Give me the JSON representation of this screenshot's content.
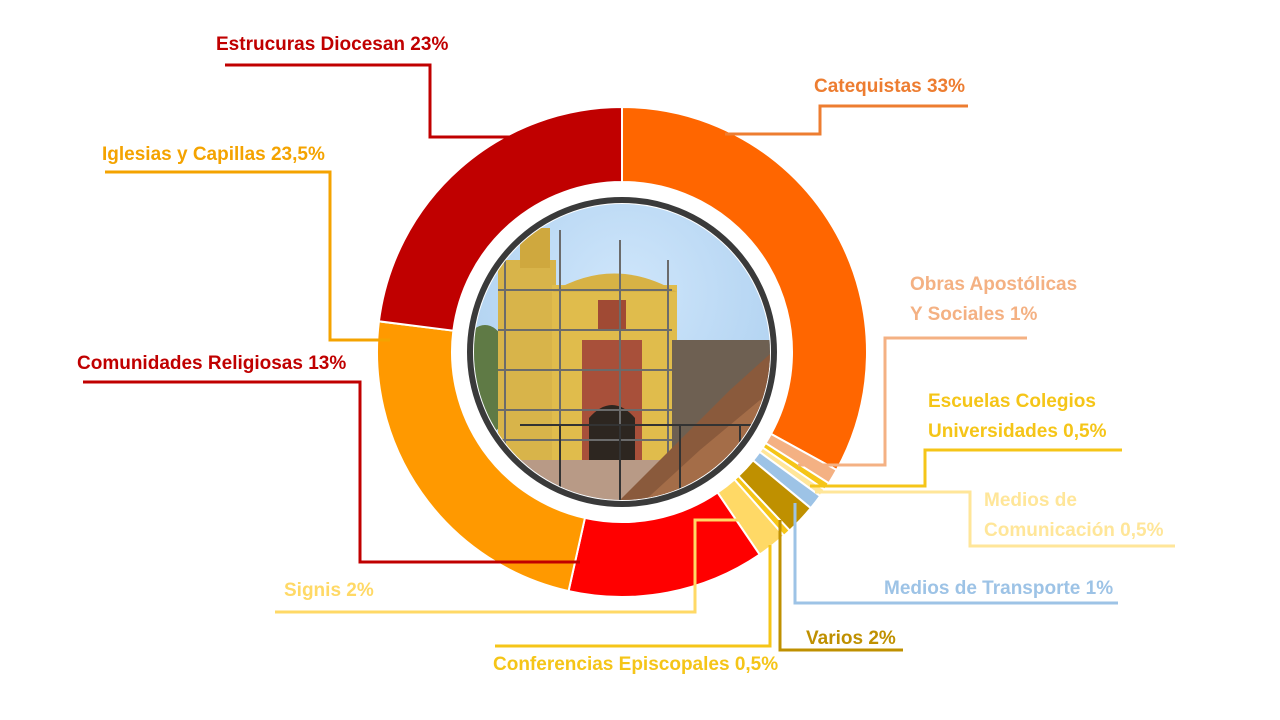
{
  "chart_data": {
    "type": "pie",
    "title": "",
    "series": [
      {
        "name": "Catequistas",
        "label": "Catequistas 33%",
        "value": 33,
        "color": "#ff6600"
      },
      {
        "name": "Obras Apostólicas Y Sociales",
        "label_lines": [
          "Obras Apostólicas",
          "Y Sociales 1%"
        ],
        "value": 1,
        "color": "#f4b183"
      },
      {
        "name": "Escuelas Colegios Universidades",
        "label_lines": [
          "Escuelas Colegios",
          "Universidades 0,5%"
        ],
        "value": 0.5,
        "color": "#f5c518"
      },
      {
        "name": "Medios de Comunicación",
        "label_lines": [
          "Medios de",
          "Comunicación 0,5%"
        ],
        "value": 0.5,
        "color": "#ffe699"
      },
      {
        "name": "Medios de Transporte",
        "label": "Medios de Transporte 1%",
        "value": 1,
        "color": "#9dc3e6"
      },
      {
        "name": "Varios",
        "label": "Varios 2%",
        "value": 2,
        "color": "#bf9000"
      },
      {
        "name": "Conferencias Episcopales",
        "label": "Conferencias Episcopales 0,5%",
        "value": 0.5,
        "color": "#f5c518"
      },
      {
        "name": "Signis",
        "label": "Signis 2%",
        "value": 2,
        "color": "#ffd966"
      },
      {
        "name": "Comunidades Religiosas",
        "label": "Comunidades Religiosas 13%",
        "value": 13,
        "color": "#ff0000",
        "label_color": "#c00000"
      },
      {
        "name": "Iglesias y Capillas",
        "label": "Iglesias y Capillas 23,5%",
        "value": 23.5,
        "color": "#ff9900",
        "label_color": "#f4a300"
      },
      {
        "name": "Estrucuras Diocesan",
        "label": "Estrucuras Diocesan 23%",
        "value": 23,
        "color": "#c00000"
      }
    ],
    "center_image": "church-photo",
    "legend": "none"
  }
}
